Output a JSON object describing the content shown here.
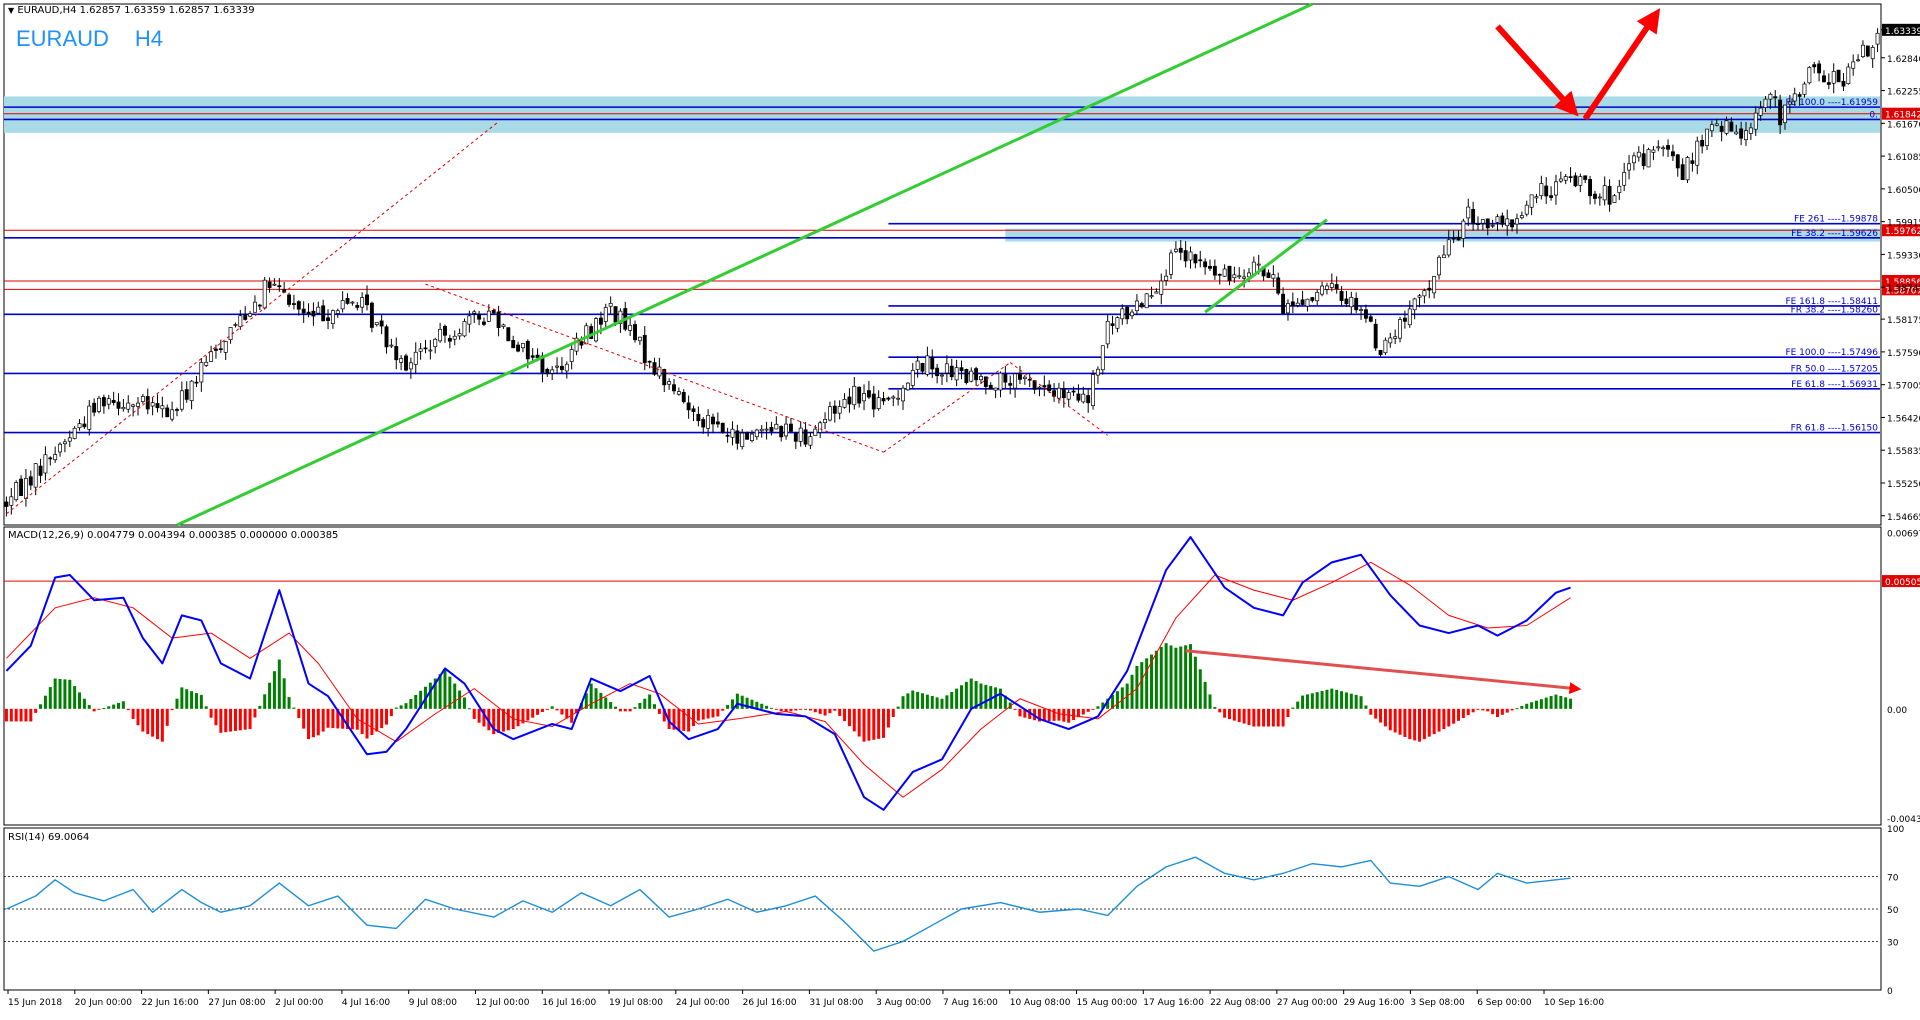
{
  "window": {
    "header": "EURAUD,H4  1.62857 1.63359 1.62857 1.63339",
    "symbol": "EURAUD",
    "timeframe": "H4",
    "ohlc": {
      "open": "1.62857",
      "high": "1.63359",
      "low": "1.62857",
      "close": "1.63339"
    }
  },
  "colors": {
    "bull_candle": "#000000",
    "bear_candle": "#000000",
    "green_line": "#33cc33",
    "blue_line": "#0000cc",
    "red_line": "#e00000",
    "zone": "#a8dbe6",
    "macd_line": "#0000ff",
    "signal_line": "#ff0000",
    "hist_up": "#008000",
    "hist_down": "#ff0000",
    "rsi_line": "#1e8fd6",
    "arrow": "#ff0000"
  },
  "chart_data": [
    {
      "type": "candlestick",
      "title": "EURAUD,H4",
      "price_axis_ticks": [
        "1.63339",
        "1.62840",
        "1.62255",
        "1.61670",
        "1.61085",
        "1.60500",
        "1.59915",
        "1.59330",
        "1.58745",
        "1.58175",
        "1.57590",
        "1.57005",
        "1.56420",
        "1.55835",
        "1.55250",
        "1.54665"
      ],
      "ylim": [
        1.545,
        1.638
      ],
      "current_price": "1.63339",
      "x_tick_labels": [
        "15 Jun 2018",
        "20 Jun 00:00",
        "22 Jun 16:00",
        "27 Jun 08:00",
        "2 Jul 00:00",
        "4 Jul 16:00",
        "9 Jul 08:00",
        "12 Jul 00:00",
        "16 Jul 16:00",
        "19 Jul 08:00",
        "24 Jul 00:00",
        "26 Jul 16:00",
        "31 Jul 08:00",
        "3 Aug 00:00",
        "7 Aug 16:00",
        "10 Aug 08:00",
        "15 Aug 00:00",
        "17 Aug 16:00",
        "22 Aug 08:00",
        "27 Aug 00:00",
        "29 Aug 16:00",
        "3 Sep 08:00",
        "6 Sep 00:00",
        "10 Sep 16:00"
      ],
      "path_points": [
        [
          0,
          1.549
        ],
        [
          14,
          1.562
        ],
        [
          20,
          1.568
        ],
        [
          34,
          1.565
        ],
        [
          46,
          1.58
        ],
        [
          54,
          1.588
        ],
        [
          62,
          1.582
        ],
        [
          72,
          1.585
        ],
        [
          82,
          1.574
        ],
        [
          92,
          1.58
        ],
        [
          100,
          1.583
        ],
        [
          104,
          1.578
        ],
        [
          112,
          1.572
        ],
        [
          124,
          1.584
        ],
        [
          134,
          1.572
        ],
        [
          140,
          1.566
        ],
        [
          150,
          1.56
        ],
        [
          156,
          1.563
        ],
        [
          164,
          1.561
        ],
        [
          174,
          1.569
        ],
        [
          180,
          1.566
        ],
        [
          188,
          1.574
        ],
        [
          198,
          1.571
        ],
        [
          212,
          1.57
        ],
        [
          216,
          1.568
        ],
        [
          222,
          1.567
        ],
        [
          226,
          1.58
        ],
        [
          234,
          1.586
        ],
        [
          240,
          1.593
        ],
        [
          244,
          1.592
        ],
        [
          250,
          1.589
        ],
        [
          256,
          1.592
        ],
        [
          260,
          1.588
        ],
        [
          262,
          1.584
        ],
        [
          272,
          1.587
        ],
        [
          278,
          1.584
        ],
        [
          282,
          1.576
        ],
        [
          290,
          1.585
        ],
        [
          296,
          1.595
        ],
        [
          300,
          1.6
        ],
        [
          308,
          1.598
        ],
        [
          314,
          1.604
        ],
        [
          322,
          1.607
        ],
        [
          330,
          1.603
        ],
        [
          334,
          1.61
        ],
        [
          340,
          1.612
        ],
        [
          344,
          1.608
        ],
        [
          350,
          1.616
        ],
        [
          356,
          1.615
        ],
        [
          362,
          1.622
        ],
        [
          364,
          1.617
        ],
        [
          370,
          1.626
        ],
        [
          376,
          1.624
        ],
        [
          382,
          1.63
        ],
        [
          384,
          1.633
        ]
      ],
      "n_candles": 385,
      "horizontal_levels": [
        {
          "label": "FE 100.0 ----1.61959",
          "value": 1.61959,
          "color": "blue",
          "from": 0
        },
        {
          "label": "1.61842",
          "value": 1.61842,
          "color": "red",
          "from": 0,
          "axis_tag": true
        },
        {
          "label": "0.",
          "value": 1.6174,
          "color": "blue",
          "from": 0
        },
        {
          "label": "FE 261 ----1.59878",
          "value": 1.59878,
          "color": "blue",
          "from": 181
        },
        {
          "label": "1.59762",
          "value": 1.59762,
          "color": "red",
          "from": 0,
          "axis_tag": true
        },
        {
          "label": "FE 38.2 ----1.59626",
          "value": 1.59626,
          "color": "blue",
          "from": 0
        },
        {
          "label": "1.58856",
          "value": 1.58856,
          "color": "red",
          "from": 0,
          "axis_tag": true
        },
        {
          "label": "1.58707",
          "value": 1.58707,
          "color": "red",
          "from": 0,
          "axis_tag": true
        },
        {
          "label": "FE 161.8 ----1.58411",
          "value": 1.58411,
          "color": "blue",
          "from": 181
        },
        {
          "label": "FR 38.2 ----1.58260",
          "value": 1.5826,
          "color": "blue",
          "from": 0
        },
        {
          "label": "FE 100.0 ----1.57496",
          "value": 1.57496,
          "color": "blue",
          "from": 181
        },
        {
          "label": "FR 50.0 ----1.57205",
          "value": 1.57205,
          "color": "blue",
          "from": 0
        },
        {
          "label": "FE 61.8 ----1.56931",
          "value": 1.56931,
          "color": "blue",
          "from": 181
        },
        {
          "label": "FR 61.8 ----1.56150",
          "value": 1.5615,
          "color": "blue",
          "from": 0
        }
      ],
      "zones": [
        {
          "from_value": 1.615,
          "to_value": 1.6215,
          "from_candle": 0
        },
        {
          "from_value": 1.5956,
          "to_value": 1.5979,
          "from_candle": 205
        }
      ],
      "trendlines": [
        {
          "color": "green",
          "points": [
            [
              35,
              1.545
            ],
            [
              268,
              1.638
            ]
          ]
        },
        {
          "color": "green",
          "points": [
            [
              246,
              1.583
            ],
            [
              271,
              1.5995
            ]
          ]
        },
        {
          "color": "red-dashed",
          "points": [
            [
              0,
              1.547
            ],
            [
              101,
              1.617
            ]
          ]
        },
        {
          "color": "red-dashed",
          "points": [
            [
              86,
              1.588
            ],
            [
              180,
              1.558
            ]
          ]
        },
        {
          "color": "red-dashed",
          "points": [
            [
              180,
              1.558
            ],
            [
              206,
              1.574
            ]
          ]
        },
        {
          "color": "red-dashed",
          "points": [
            [
              206,
              1.574
            ],
            [
              226,
              1.561
            ]
          ]
        }
      ],
      "arrows": [
        {
          "color": "red",
          "points": [
            [
              306,
              1.634
            ],
            [
              321,
              1.6195
            ]
          ]
        },
        {
          "color": "red",
          "points": [
            [
              324,
              1.6175
            ],
            [
              338,
              1.6355
            ]
          ]
        }
      ]
    },
    {
      "type": "macd",
      "title": "MACD(12,26,9) 0.004779 0.004394 0.000385 0.000000 0.000385",
      "axis_ticks": [
        "0.006978",
        "0.005059",
        "0.00",
        "-0.004323"
      ],
      "ylim": [
        -0.0046,
        0.0072
      ],
      "red_level": 0.005059,
      "macd_points": [
        [
          0,
          0.0015
        ],
        [
          5,
          0.0025
        ],
        [
          10,
          0.0052
        ],
        [
          13,
          0.0053
        ],
        [
          18,
          0.0043
        ],
        [
          24,
          0.0044
        ],
        [
          28,
          0.0028
        ],
        [
          32,
          0.0018
        ],
        [
          36,
          0.0037
        ],
        [
          40,
          0.0035
        ],
        [
          44,
          0.0018
        ],
        [
          50,
          0.0012
        ],
        [
          56,
          0.0047
        ],
        [
          62,
          0.001
        ],
        [
          66,
          0.0005
        ],
        [
          74,
          -0.0018
        ],
        [
          78,
          -0.0017
        ],
        [
          82,
          -0.0008
        ],
        [
          90,
          0.0016
        ],
        [
          94,
          0.001
        ],
        [
          100,
          -0.0008
        ],
        [
          104,
          -0.0012
        ],
        [
          112,
          -0.0006
        ],
        [
          116,
          -0.0008
        ],
        [
          120,
          0.0012
        ],
        [
          126,
          0.0007
        ],
        [
          132,
          0.0013
        ],
        [
          136,
          -0.0005
        ],
        [
          140,
          -0.0012
        ],
        [
          146,
          -0.0008
        ],
        [
          150,
          0.0002
        ],
        [
          158,
          -0.0002
        ],
        [
          164,
          -0.0003
        ],
        [
          170,
          -0.001
        ],
        [
          176,
          -0.0035
        ],
        [
          180,
          -0.004
        ],
        [
          186,
          -0.0025
        ],
        [
          192,
          -0.002
        ],
        [
          198,
          0.0
        ],
        [
          204,
          0.0006
        ],
        [
          212,
          -0.0004
        ],
        [
          218,
          -0.0008
        ],
        [
          224,
          -0.0003
        ],
        [
          230,
          0.0015
        ],
        [
          238,
          0.0055
        ],
        [
          243,
          0.0068
        ],
        [
          250,
          0.0048
        ],
        [
          256,
          0.004
        ],
        [
          262,
          0.0037
        ],
        [
          266,
          0.005
        ],
        [
          272,
          0.0058
        ],
        [
          278,
          0.0061
        ],
        [
          284,
          0.0045
        ],
        [
          290,
          0.0033
        ],
        [
          296,
          0.003
        ],
        [
          302,
          0.0033
        ],
        [
          306,
          0.0029
        ],
        [
          312,
          0.0035
        ],
        [
          318,
          0.0046
        ],
        [
          321,
          0.0048
        ]
      ],
      "signal_points": [
        [
          0,
          0.002
        ],
        [
          10,
          0.004
        ],
        [
          18,
          0.0044
        ],
        [
          26,
          0.004
        ],
        [
          34,
          0.0028
        ],
        [
          42,
          0.003
        ],
        [
          50,
          0.002
        ],
        [
          58,
          0.003
        ],
        [
          64,
          0.0018
        ],
        [
          72,
          -0.0004
        ],
        [
          80,
          -0.0013
        ],
        [
          88,
          -0.0002
        ],
        [
          96,
          0.0008
        ],
        [
          104,
          -0.0004
        ],
        [
          112,
          -0.0007
        ],
        [
          120,
          0.0002
        ],
        [
          128,
          0.001
        ],
        [
          134,
          0.0006
        ],
        [
          142,
          -0.0006
        ],
        [
          150,
          -0.0004
        ],
        [
          160,
          -0.0001
        ],
        [
          168,
          -0.0005
        ],
        [
          176,
          -0.0022
        ],
        [
          184,
          -0.0035
        ],
        [
          192,
          -0.0024
        ],
        [
          200,
          -0.0008
        ],
        [
          208,
          0.0004
        ],
        [
          216,
          -0.0002
        ],
        [
          224,
          -0.0004
        ],
        [
          232,
          0.0008
        ],
        [
          240,
          0.0036
        ],
        [
          248,
          0.0053
        ],
        [
          256,
          0.0047
        ],
        [
          264,
          0.0043
        ],
        [
          272,
          0.005
        ],
        [
          280,
          0.0058
        ],
        [
          288,
          0.0049
        ],
        [
          296,
          0.0037
        ],
        [
          304,
          0.0032
        ],
        [
          312,
          0.0033
        ],
        [
          321,
          0.0044
        ]
      ],
      "divergence_arrow": {
        "points": [
          [
            242,
            0.0023
          ],
          [
            322,
            0.0008
          ]
        ]
      }
    },
    {
      "type": "rsi",
      "title": "RSI(14) 69.0064",
      "axis_ticks": [
        "100",
        "70",
        "50",
        "30",
        "0"
      ],
      "ylim": [
        0,
        100
      ],
      "levels": [
        70,
        50,
        30
      ],
      "rsi_points": [
        [
          0,
          50
        ],
        [
          6,
          58
        ],
        [
          10,
          68
        ],
        [
          14,
          60
        ],
        [
          20,
          55
        ],
        [
          26,
          62
        ],
        [
          30,
          48
        ],
        [
          36,
          62
        ],
        [
          40,
          54
        ],
        [
          44,
          48
        ],
        [
          50,
          52
        ],
        [
          56,
          66
        ],
        [
          62,
          52
        ],
        [
          68,
          58
        ],
        [
          74,
          40
        ],
        [
          80,
          38
        ],
        [
          86,
          56
        ],
        [
          92,
          50
        ],
        [
          100,
          45
        ],
        [
          106,
          55
        ],
        [
          112,
          48
        ],
        [
          118,
          60
        ],
        [
          124,
          52
        ],
        [
          130,
          62
        ],
        [
          136,
          45
        ],
        [
          142,
          50
        ],
        [
          148,
          56
        ],
        [
          154,
          48
        ],
        [
          160,
          52
        ],
        [
          166,
          58
        ],
        [
          172,
          42
        ],
        [
          178,
          24
        ],
        [
          184,
          30
        ],
        [
          190,
          40
        ],
        [
          196,
          50
        ],
        [
          204,
          54
        ],
        [
          212,
          48
        ],
        [
          220,
          50
        ],
        [
          226,
          46
        ],
        [
          232,
          64
        ],
        [
          238,
          76
        ],
        [
          244,
          82
        ],
        [
          250,
          72
        ],
        [
          256,
          68
        ],
        [
          262,
          72
        ],
        [
          268,
          78
        ],
        [
          274,
          76
        ],
        [
          280,
          80
        ],
        [
          284,
          66
        ],
        [
          290,
          64
        ],
        [
          296,
          70
        ],
        [
          302,
          62
        ],
        [
          306,
          72
        ],
        [
          312,
          66
        ],
        [
          318,
          68
        ],
        [
          321,
          69
        ]
      ]
    }
  ]
}
